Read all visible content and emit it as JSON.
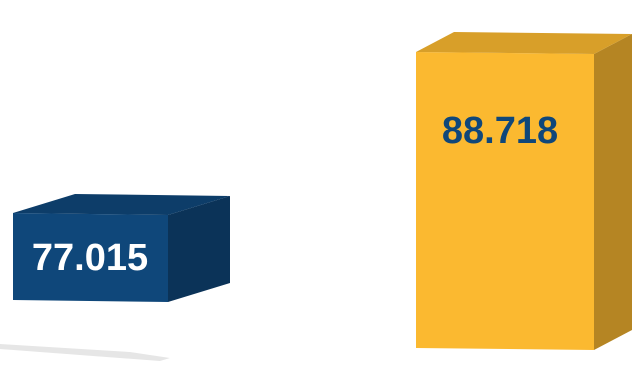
{
  "chart_data": {
    "type": "bar",
    "categories": [
      "",
      ""
    ],
    "values": [
      77.015,
      88.718
    ],
    "data_labels": [
      "77.015",
      "88.718"
    ],
    "colors": [
      "#0f477a",
      "#fbb930"
    ],
    "label_colors": [
      "#ffffff",
      "#0f477a"
    ],
    "style": "3d",
    "ylim": [
      70,
      90
    ],
    "legend": "none",
    "grid": false
  }
}
